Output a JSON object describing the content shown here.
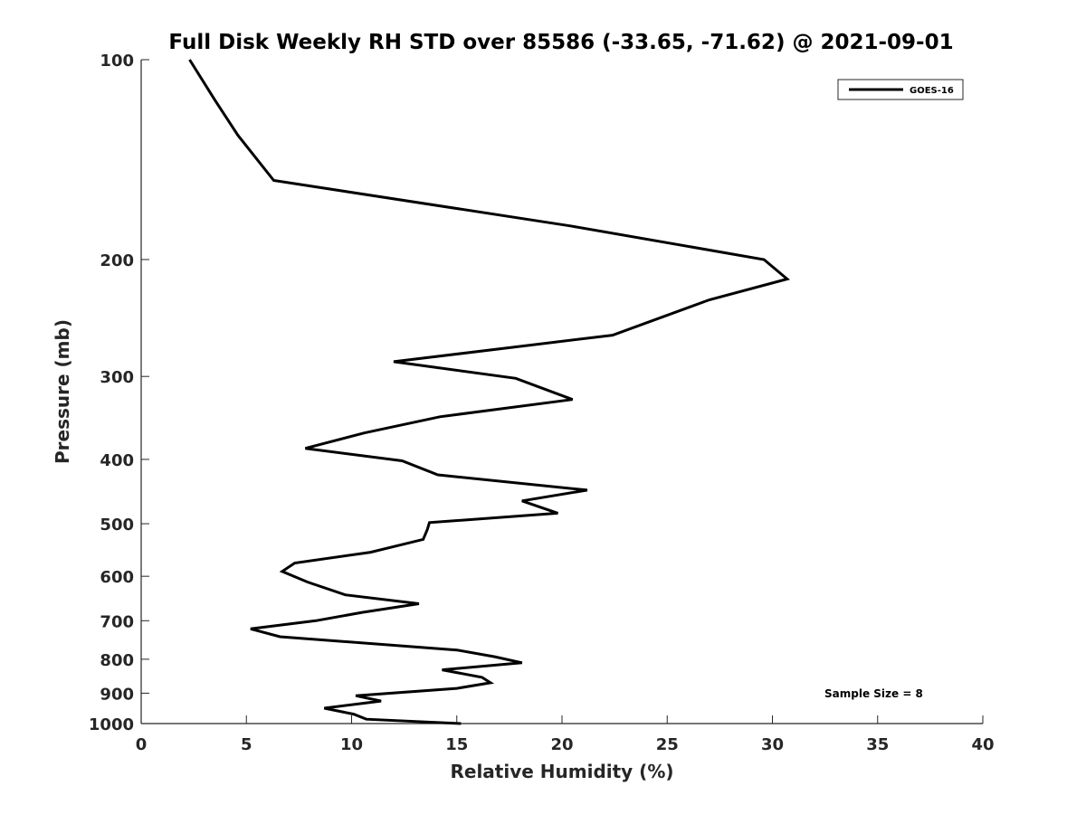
{
  "chart_data": {
    "type": "line",
    "title": "Full Disk Weekly RH STD over 85586 (-33.65, -71.62) @ 2021-09-01",
    "xlabel": "Relative Humidity (%)",
    "ylabel": "Pressure (mb)",
    "xlim": [
      0,
      40
    ],
    "ylim": [
      100,
      1000
    ],
    "y_scale": "log",
    "y_reversed": true,
    "x_ticks": [
      0,
      5,
      10,
      15,
      20,
      25,
      30,
      35,
      40
    ],
    "y_ticks": [
      100,
      200,
      300,
      400,
      500,
      600,
      700,
      800,
      900,
      1000
    ],
    "grid": false,
    "legend_position": "top-right",
    "series": [
      {
        "name": "GOES-16",
        "color": "#000000",
        "x": [
          2.3,
          3.5,
          4.6,
          6.3,
          20.4,
          29.6,
          30.7,
          27.0,
          22.4,
          12.0,
          17.8,
          20.5,
          14.2,
          10.6,
          7.8,
          12.4,
          14.1,
          21.2,
          18.1,
          19.8,
          13.7,
          13.6,
          13.4,
          10.9,
          7.3,
          6.7,
          7.9,
          9.7,
          13.2,
          10.5,
          8.3,
          5.2,
          6.6,
          15.0,
          16.8,
          18.1,
          14.3,
          16.2,
          16.6,
          15.0,
          10.2,
          11.4,
          8.7,
          10.1,
          10.7,
          15.2
        ],
        "y": [
          100,
          115,
          130,
          152,
          178,
          200,
          214,
          230,
          260,
          285,
          302,
          325,
          345,
          365,
          385,
          402,
          422,
          445,
          462,
          482,
          498,
          510,
          528,
          552,
          573,
          590,
          612,
          640,
          660,
          680,
          700,
          720,
          740,
          775,
          793,
          810,
          830,
          852,
          868,
          885,
          908,
          925,
          948,
          968,
          985,
          1000
        ]
      }
    ],
    "annotations": [
      "Sample Size = 8"
    ]
  }
}
